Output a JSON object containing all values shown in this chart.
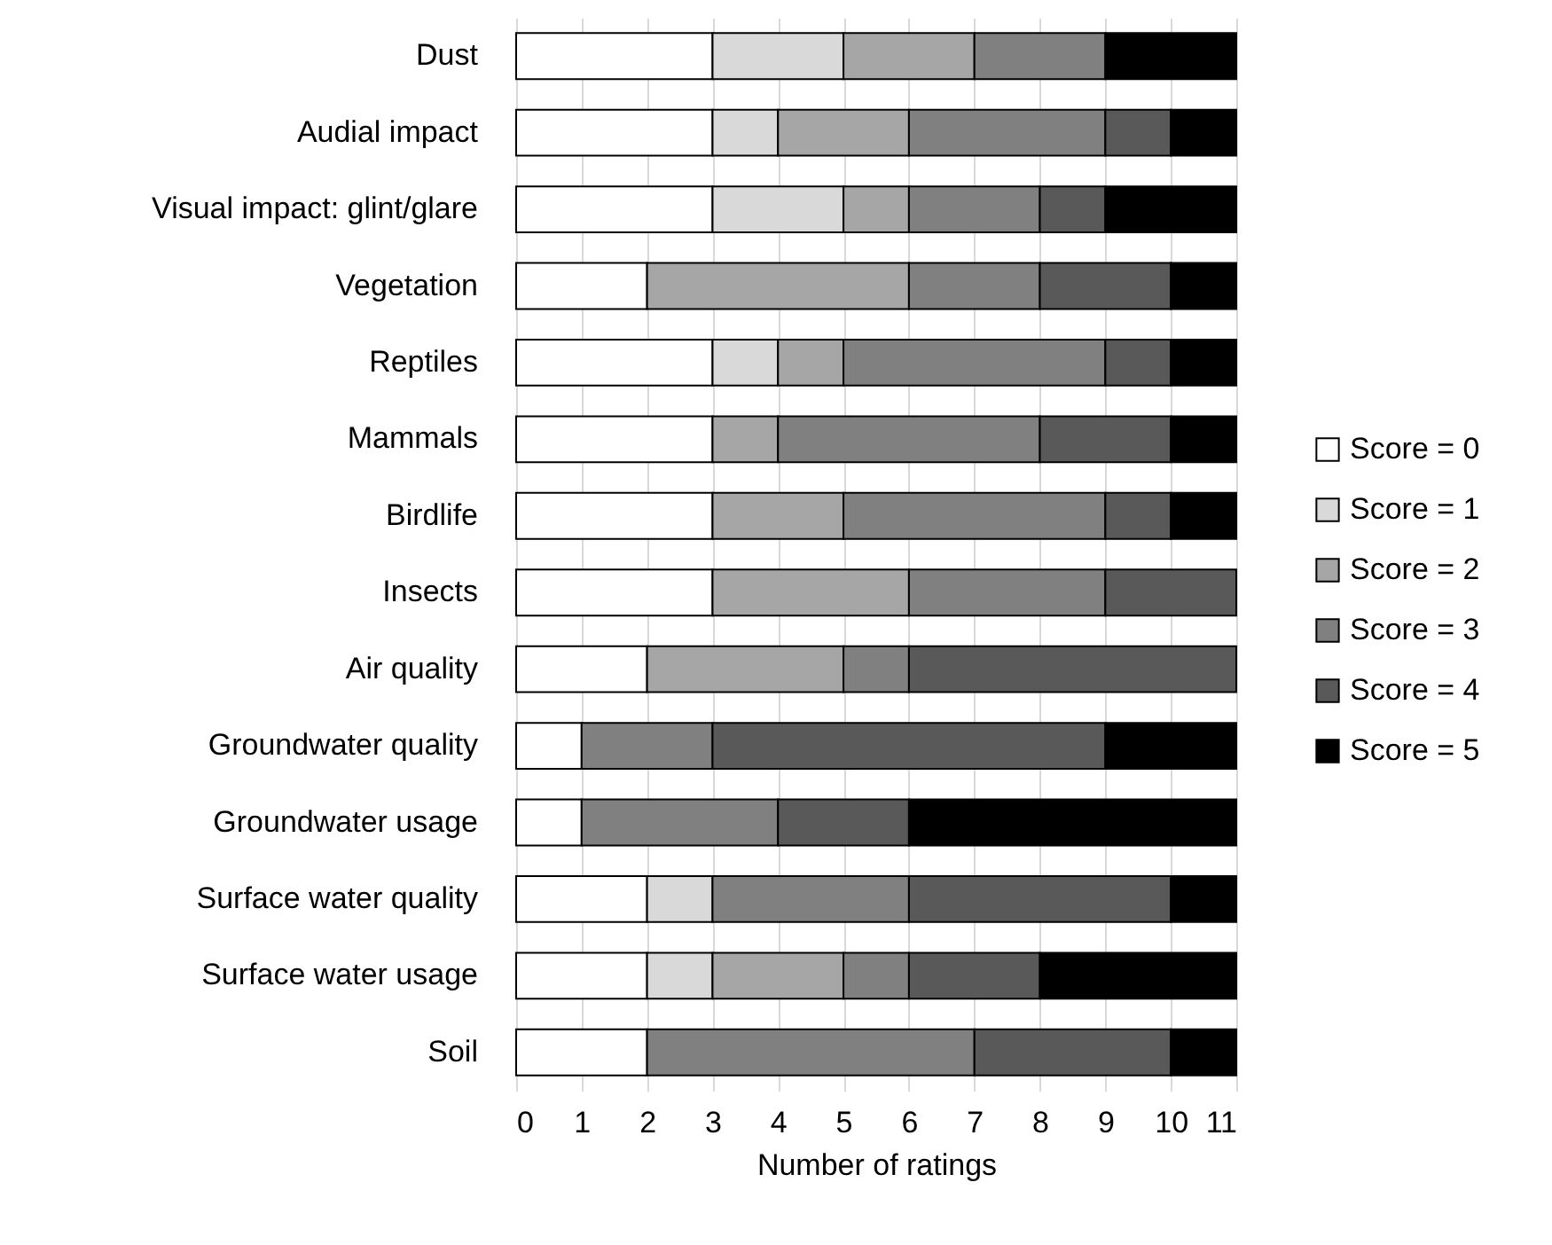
{
  "chart_data": {
    "type": "bar",
    "orientation": "horizontal",
    "stacked": true,
    "xlabel": "Number of ratings",
    "categories": [
      "Dust",
      "Audial impact",
      "Visual impact: glint/glare",
      "Vegetation",
      "Reptiles",
      "Mammals",
      "Birdlife",
      "Insects",
      "Air quality",
      "Groundwater quality",
      "Groundwater usage",
      "Surface water quality",
      "Surface water usage",
      "Soil"
    ],
    "series": [
      {
        "name": "Score = 0",
        "color": "#ffffff",
        "values": [
          3,
          3,
          3,
          2,
          3,
          3,
          3,
          3,
          2,
          1,
          1,
          2,
          2,
          2
        ]
      },
      {
        "name": "Score = 1",
        "color": "#d9d9d9",
        "values": [
          2,
          1,
          2,
          0,
          1,
          0,
          0,
          0,
          0,
          0,
          0,
          1,
          1,
          0
        ]
      },
      {
        "name": "Score = 2",
        "color": "#a6a6a6",
        "values": [
          2,
          2,
          1,
          4,
          1,
          1,
          2,
          3,
          3,
          0,
          0,
          0,
          2,
          0
        ]
      },
      {
        "name": "Score = 3",
        "color": "#808080",
        "values": [
          2,
          3,
          2,
          2,
          4,
          4,
          4,
          3,
          1,
          2,
          3,
          3,
          1,
          5
        ]
      },
      {
        "name": "Score = 4",
        "color": "#595959",
        "values": [
          0,
          1,
          1,
          2,
          1,
          2,
          1,
          2,
          5,
          6,
          2,
          4,
          2,
          3
        ]
      },
      {
        "name": "Score = 5",
        "color": "#000000",
        "values": [
          2,
          1,
          2,
          1,
          1,
          1,
          1,
          0,
          0,
          2,
          5,
          1,
          3,
          1
        ]
      }
    ],
    "xlim": [
      0,
      11
    ],
    "xticks": [
      0,
      1,
      2,
      3,
      4,
      5,
      6,
      7,
      8,
      9,
      10,
      11
    ],
    "grid": "x",
    "legend": "right"
  }
}
